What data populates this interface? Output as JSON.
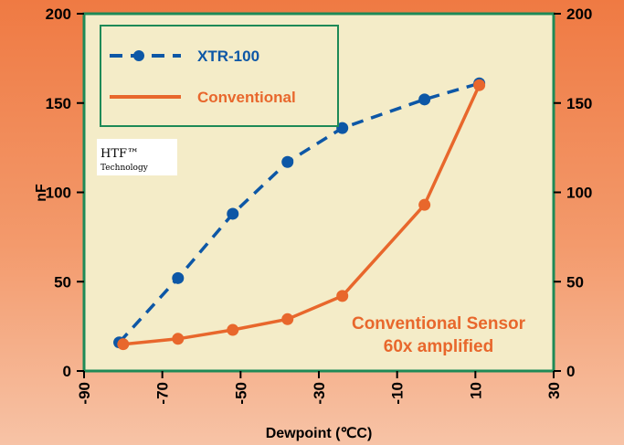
{
  "chart_data": {
    "type": "line",
    "xlabel": "Dewpoint (℃C)",
    "ylabel": "nF",
    "xlim": [
      -90,
      30
    ],
    "ylim": [
      0,
      200
    ],
    "x_ticks": [
      -90,
      -70,
      -50,
      -30,
      -10,
      10,
      30
    ],
    "y_ticks": [
      0,
      50,
      100,
      150,
      200
    ],
    "grid": false,
    "legend_position": "top-left",
    "series": [
      {
        "name": "XTR-100",
        "color": "#0d57a6",
        "line_style": "dashed",
        "marker": "circle",
        "points": [
          {
            "x": -81,
            "y": 16
          },
          {
            "x": -66,
            "y": 52
          },
          {
            "x": -52,
            "y": 88
          },
          {
            "x": -38,
            "y": 117
          },
          {
            "x": -24,
            "y": 136
          },
          {
            "x": -3,
            "y": 152
          },
          {
            "x": 11,
            "y": 161
          }
        ]
      },
      {
        "name": "Conventional",
        "color": "#e8672c",
        "line_style": "solid",
        "marker": "circle",
        "points": [
          {
            "x": -80,
            "y": 15
          },
          {
            "x": -66,
            "y": 18
          },
          {
            "x": -52,
            "y": 23
          },
          {
            "x": -38,
            "y": 29
          },
          {
            "x": -24,
            "y": 42
          },
          {
            "x": -3,
            "y": 93
          },
          {
            "x": 11,
            "y": 160
          }
        ]
      }
    ],
    "annotations": [
      {
        "lines": [
          "Conventional Sensor",
          "60x amplified"
        ],
        "color": "#e8672c"
      }
    ],
    "badge": {
      "line1": "HTF™",
      "line2": "Technology"
    }
  },
  "colors": {
    "plot_background": "#f4ecc8",
    "plot_border": "#1e8a57",
    "legend_border": "#1e8a57"
  }
}
